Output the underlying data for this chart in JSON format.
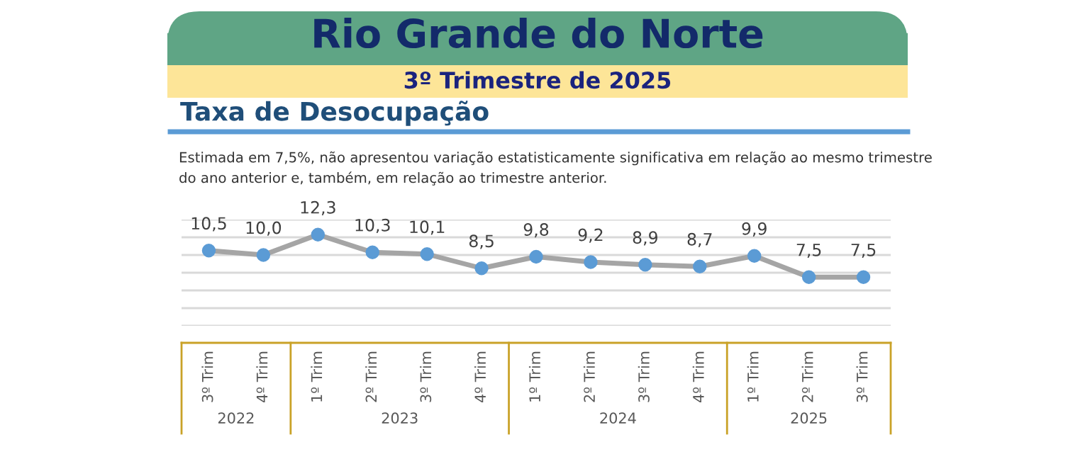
{
  "chart_data": {
    "type": "line",
    "title": "Rio Grande do Norte",
    "subtitle": "3º Trimestre de 2025",
    "annotations": [
      "Taxa de Desocupação",
      "Estimada em 7,5%, não apresentou variação estatisticamente significativa em relação ao mesmo trimestre\ndo ano anterior e, também, em relação ao trimestre anterior.",
      "2022",
      "2023",
      "2024",
      "2025"
    ],
    "categories": [
      "3º Trim",
      "4º Trim",
      "1º Trim",
      "2º Trim",
      "3º Trim",
      "4º Trim",
      "1º Trim",
      "2º Trim",
      "3º Trim",
      "4º Trim",
      "1º Trim",
      "2º Trim",
      "3º Trim"
    ],
    "series": [
      {
        "color": "#5b9bd5",
        "values": [
          10.5,
          10.0,
          12.3,
          10.3,
          10.1,
          8.5,
          9.8,
          9.2,
          8.9,
          8.7,
          9.9,
          7.5,
          7.5
        ],
        "value_labels": [
          "10,5",
          "10,0",
          "12,3",
          "10,3",
          "10,1",
          "8,5",
          "9,8",
          "9,2",
          "8,9",
          "8,7",
          "9,9",
          "7,5",
          "7,5"
        ]
      }
    ],
    "ylim": [
      2,
      14
    ],
    "yticks": [
      {
        "value": 2,
        "label": null
      },
      {
        "value": 4,
        "label": null
      },
      {
        "value": 6,
        "label": null
      },
      {
        "value": 8,
        "label": null
      },
      {
        "value": 10,
        "label": null
      },
      {
        "value": 12,
        "label": null
      },
      {
        "value": 14,
        "label": null
      }
    ],
    "tick_labels": "x",
    "grid": "y",
    "marker": "circle",
    "line_style": "solid"
  }
}
